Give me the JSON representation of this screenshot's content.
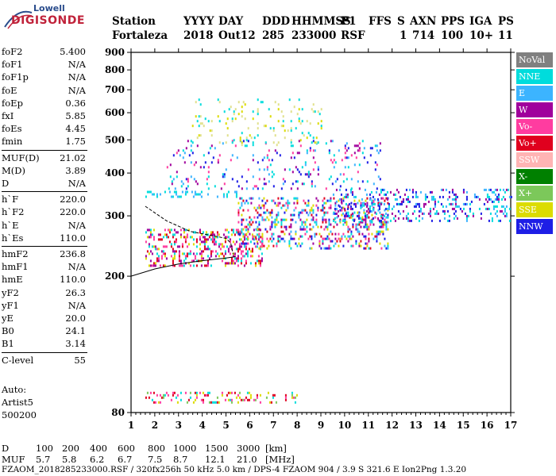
{
  "logo": {
    "line1": "Lowell",
    "line2": "DIGISONDE"
  },
  "header": {
    "labels": [
      "Station",
      "YYYY",
      "DAY",
      "DDD",
      "HHMMSS",
      "P1",
      "FFS",
      "S",
      "AXN",
      "PPS",
      "IGA",
      "PS"
    ],
    "values": [
      "Fortaleza",
      "2018",
      "Out12",
      "285",
      "233000",
      "RSF",
      "",
      "1",
      "714",
      "100",
      "10+",
      "11"
    ]
  },
  "params": [
    {
      "label": "foF2",
      "value": "5.400"
    },
    {
      "label": "foF1",
      "value": "N/A"
    },
    {
      "label": "foF1p",
      "value": "N/A"
    },
    {
      "label": "foE",
      "value": "N/A"
    },
    {
      "label": "foEp",
      "value": "0.36"
    },
    {
      "label": "fxI",
      "value": "5.85"
    },
    {
      "label": "foEs",
      "value": "4.45"
    },
    {
      "label": "fmin",
      "value": "1.75"
    },
    {
      "label": "MUF(D)",
      "value": "21.02"
    },
    {
      "label": "M(D)",
      "value": "3.89"
    },
    {
      "label": "D",
      "value": "N/A"
    },
    {
      "label": "h`F",
      "value": "220.0"
    },
    {
      "label": "h`F2",
      "value": "220.0"
    },
    {
      "label": "h`E",
      "value": "N/A"
    },
    {
      "label": "h`Es",
      "value": "110.0"
    },
    {
      "label": "hmF2",
      "value": "236.8"
    },
    {
      "label": "hmF1",
      "value": "N/A"
    },
    {
      "label": "hmE",
      "value": "110.0"
    },
    {
      "label": "yF2",
      "value": "26.3"
    },
    {
      "label": "yF1",
      "value": "N/A"
    },
    {
      "label": "yE",
      "value": "20.0"
    },
    {
      "label": "B0",
      "value": "24.1"
    },
    {
      "label": "B1",
      "value": "3.14"
    },
    {
      "label": "C-level",
      "value": "55"
    }
  ],
  "auto": {
    "line1": "Auto:",
    "line2": "Artist5",
    "line3": "500200"
  },
  "legend": [
    {
      "label": "NoVal",
      "color": "#808080"
    },
    {
      "label": "NNE",
      "color": "#00dcdc"
    },
    {
      "label": "E",
      "color": "#3cb4ff"
    },
    {
      "label": "W",
      "color": "#a0009c"
    },
    {
      "label": "Vo-",
      "color": "#ff3ca0"
    },
    {
      "label": "Vo+",
      "color": "#e0001e"
    },
    {
      "label": "SSW",
      "color": "#ffb4b4"
    },
    {
      "label": "X-",
      "color": "#008000"
    },
    {
      "label": "X+",
      "color": "#7cc85a"
    },
    {
      "label": "SSE",
      "color": "#dcdc00"
    },
    {
      "label": "NNW",
      "color": "#1e1ee6"
    }
  ],
  "bottom": {
    "row1_label": "D",
    "row1_values": [
      "100",
      "200",
      "400",
      "600",
      "800",
      "1000",
      "1500",
      "3000"
    ],
    "row1_unit": "[km]",
    "row2_label": "MUF",
    "row2_values": [
      "5.7",
      "5.8",
      "6.2",
      "6.7",
      "7.5",
      "8.7",
      "12.1",
      "21.0"
    ],
    "row2_unit": "[MHz]"
  },
  "footer": "FZAOM_2018285233000.RSF / 320fx256h 50 kHz 5.0 km / DPS-4 FZAOM 904 / 3.9 S 321.6 E   Ion2Png 1.3.20",
  "chart_data": {
    "type": "scatter",
    "xlim": [
      1,
      17
    ],
    "ylim": [
      80,
      900
    ],
    "y_scale": "log",
    "xticks": [
      "1",
      "2",
      "3",
      "4",
      "5",
      "6",
      "7",
      "8",
      "9",
      "10",
      "11",
      "12",
      "13",
      "14",
      "15",
      "16",
      "17"
    ],
    "yticks": [
      {
        "value": 80,
        "label": "80"
      },
      {
        "value": 200,
        "label": "200"
      },
      {
        "value": 300,
        "label": "300"
      },
      {
        "value": 400,
        "label": "400"
      },
      {
        "value": 500,
        "label": "500"
      },
      {
        "value": 600,
        "label": "600"
      },
      {
        "value": 700,
        "label": "700"
      },
      {
        "value": 800,
        "label": "800"
      },
      {
        "value": 900,
        "label": "900"
      }
    ],
    "echo_regions": [
      {
        "name": "F-trace",
        "x": [
          1.6,
          6.5
        ],
        "y": [
          215,
          275
        ],
        "colors": [
          "#e0001e",
          "#dcdc00",
          "#a0009c",
          "#00dcdc",
          "#ff3ca0"
        ],
        "density": 0.9
      },
      {
        "name": "F-spread",
        "x": [
          5.5,
          11.8
        ],
        "y": [
          240,
          340
        ],
        "colors": [
          "#e0001e",
          "#ff3ca0",
          "#a0009c",
          "#dcdc00",
          "#3cb4ff",
          "#1e1ee6",
          "#00dcdc"
        ],
        "density": 0.75
      },
      {
        "name": "F-spread-high",
        "x": [
          9.5,
          17.0
        ],
        "y": [
          290,
          360
        ],
        "colors": [
          "#3cb4ff",
          "#1e1ee6",
          "#a0009c",
          "#00dcdc"
        ],
        "density": 0.6
      },
      {
        "name": "F-band-350",
        "x": [
          1.6,
          6.0
        ],
        "y": [
          340,
          355
        ],
        "colors": [
          "#3cb4ff",
          "#00dcdc"
        ],
        "density": 0.7
      },
      {
        "name": "multihop",
        "x": [
          2.5,
          11.5
        ],
        "y": [
          360,
          500
        ],
        "colors": [
          "#a0009c",
          "#3cb4ff",
          "#00dcdc",
          "#ff3ca0",
          "#1e1ee6"
        ],
        "density": 0.22
      },
      {
        "name": "second-hop",
        "x": [
          3.5,
          9.0
        ],
        "y": [
          480,
          660
        ],
        "colors": [
          "#dcdc00",
          "#e0e08c",
          "#00dcdc"
        ],
        "density": 0.25
      },
      {
        "name": "Es-trace",
        "x": [
          1.6,
          8.0
        ],
        "y": [
          85,
          92
        ],
        "colors": [
          "#e0001e",
          "#ff3ca0",
          "#7cc85a",
          "#dcdc00",
          "#00dcdc"
        ],
        "density": 0.65
      }
    ],
    "profile_curves": [
      {
        "name": "upper-profile",
        "points": [
          [
            1.6,
            320
          ],
          [
            2.5,
            290
          ],
          [
            3.5,
            270
          ],
          [
            4.5,
            262
          ],
          [
            5.0,
            258
          ],
          [
            5.2,
            250
          ],
          [
            5.3,
            232
          ]
        ]
      },
      {
        "name": "lower-profile",
        "points": [
          [
            1.0,
            200
          ],
          [
            2.0,
            210
          ],
          [
            3.0,
            217
          ],
          [
            4.0,
            222
          ],
          [
            5.0,
            226
          ],
          [
            5.4,
            228
          ]
        ]
      }
    ]
  }
}
